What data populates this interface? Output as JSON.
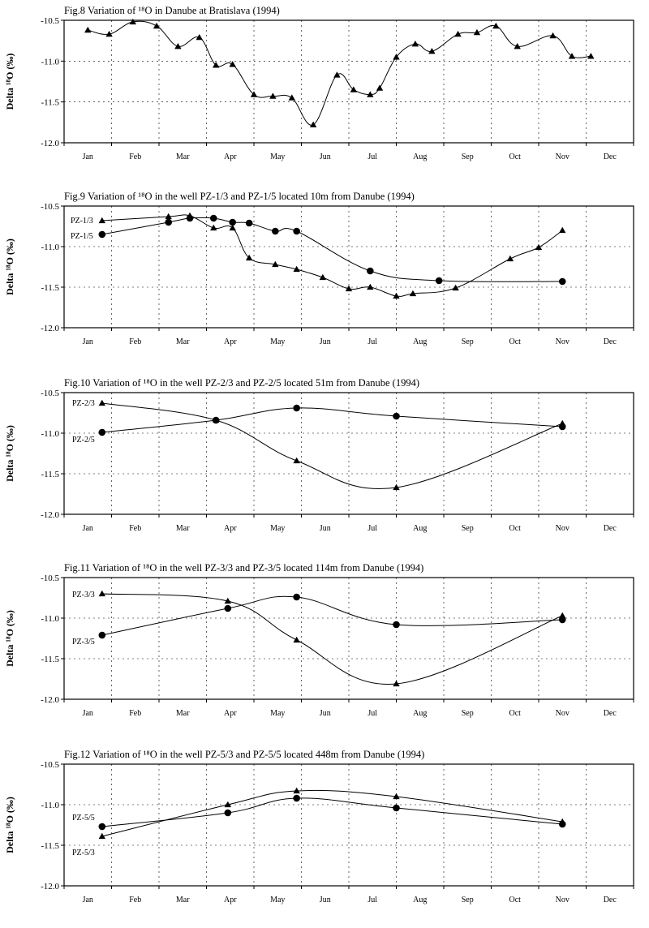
{
  "chart_data": [
    {
      "type": "line",
      "title": "Fig.8  Variation of ¹⁸O in Danube at Bratislava (1994)",
      "ylabel": "Delta ¹⁸O (‰)",
      "ylim": [
        -12.0,
        -10.5
      ],
      "yticks": [
        "-10.5",
        "-11.0",
        "-11.5",
        "-12.0"
      ],
      "categories": [
        "Jan",
        "Feb",
        "Mar",
        "Apr",
        "May",
        "Jun",
        "Jul",
        "Aug",
        "Sep",
        "Oct",
        "Nov",
        "Dec"
      ],
      "grid": true,
      "series": [
        {
          "marker": "triangle",
          "x": [
            0.0,
            0.45,
            0.95,
            1.45,
            1.9,
            2.35,
            2.7,
            3.05,
            3.5,
            3.9,
            4.3,
            4.75,
            5.25,
            5.6,
            5.95,
            6.15,
            6.5,
            6.9,
            7.25,
            7.8,
            8.2,
            8.6,
            9.05,
            9.8,
            10.2,
            10.6
          ],
          "y": [
            -10.62,
            -10.67,
            -10.52,
            -10.57,
            -10.82,
            -10.71,
            -11.05,
            -11.04,
            -11.41,
            -11.43,
            -11.45,
            -11.78,
            -11.17,
            -11.35,
            -11.41,
            -11.33,
            -10.95,
            -10.79,
            -10.88,
            -10.67,
            -10.65,
            -10.57,
            -10.82,
            -10.69,
            -10.94,
            -10.94
          ]
        }
      ]
    },
    {
      "type": "line",
      "title": "Fig.9  Variation of ¹⁸O in the well PZ-1/3 and PZ-1/5 located 10m from Danube (1994)",
      "ylabel": "Delta ¹⁸O (‰)",
      "ylim": [
        -12.0,
        -10.5
      ],
      "yticks": [
        "-10.5",
        "-11.0",
        "-11.5",
        "-12.0"
      ],
      "categories": [
        "Jan",
        "Feb",
        "Mar",
        "Apr",
        "May",
        "Jun",
        "Jul",
        "Aug",
        "Sep",
        "Oct",
        "Nov",
        "Dec"
      ],
      "grid": true,
      "series": [
        {
          "name": "PZ-1/3",
          "marker": "triangle",
          "x": [
            0.3,
            1.7,
            2.15,
            2.65,
            3.05,
            3.4,
            3.95,
            4.4,
            4.95,
            5.5,
            5.95,
            6.5,
            6.85,
            7.75,
            8.9,
            9.5,
            10.0
          ],
          "y": [
            -10.68,
            -10.63,
            -10.62,
            -10.77,
            -10.77,
            -11.14,
            -11.22,
            -11.28,
            -11.38,
            -11.52,
            -11.5,
            -11.61,
            -11.58,
            -11.51,
            -11.15,
            -11.01,
            -10.8
          ]
        },
        {
          "name": "PZ-1/5",
          "marker": "circle",
          "x": [
            0.3,
            1.7,
            2.15,
            2.65,
            3.05,
            3.4,
            3.95,
            4.4,
            5.95,
            7.4,
            10.0
          ],
          "y": [
            -10.85,
            -10.7,
            -10.65,
            -10.65,
            -10.7,
            -10.71,
            -10.81,
            -10.81,
            -11.3,
            -11.42,
            -11.43
          ]
        }
      ]
    },
    {
      "type": "line",
      "title": "Fig.10  Variation of ¹⁸O in the well PZ-2/3 and PZ-2/5 located 51m from Danube (1994)",
      "ylabel": "Delta ¹⁸O (‰)",
      "ylim": [
        -12.0,
        -10.5
      ],
      "yticks": [
        "-10.5",
        "-11.0",
        "-11.5",
        "-12.0"
      ],
      "categories": [
        "Jan",
        "Feb",
        "Mar",
        "Apr",
        "May",
        "Jun",
        "Jul",
        "Aug",
        "Sep",
        "Oct",
        "Nov",
        "Dec"
      ],
      "grid": true,
      "series": [
        {
          "name": "PZ-2/3",
          "marker": "triangle",
          "x": [
            0.3,
            2.7,
            4.4,
            6.5,
            10.0
          ],
          "y": [
            -10.63,
            -10.84,
            -11.34,
            -11.67,
            -10.88
          ]
        },
        {
          "name": "PZ-2/5",
          "marker": "circle",
          "x": [
            0.3,
            2.7,
            4.4,
            6.5,
            10.0
          ],
          "y": [
            -10.99,
            -10.84,
            -10.69,
            -10.79,
            -10.92
          ]
        }
      ]
    },
    {
      "type": "line",
      "title": "Fig.11  Variation of ¹⁸O in the well PZ-3/3 and PZ-3/5 located 114m from Danube (1994)",
      "ylabel": "Delta ¹⁸O (‰)",
      "ylim": [
        -12.0,
        -10.5
      ],
      "yticks": [
        "-10.5",
        "-11.0",
        "-11.5",
        "-12.0"
      ],
      "categories": [
        "Jan",
        "Feb",
        "Mar",
        "Apr",
        "May",
        "Jun",
        "Jul",
        "Aug",
        "Sep",
        "Oct",
        "Nov",
        "Dec"
      ],
      "grid": true,
      "series": [
        {
          "name": "PZ-3/3",
          "marker": "triangle",
          "x": [
            0.3,
            2.95,
            4.4,
            6.5,
            10.0
          ],
          "y": [
            -10.7,
            -10.79,
            -11.27,
            -11.81,
            -10.97
          ]
        },
        {
          "name": "PZ-3/5",
          "marker": "circle",
          "x": [
            0.3,
            2.95,
            4.4,
            6.5,
            10.0
          ],
          "y": [
            -11.21,
            -10.88,
            -10.74,
            -11.08,
            -11.02
          ]
        }
      ]
    },
    {
      "type": "line",
      "title": "Fig.12  Variation of ¹⁸O in the well PZ-5/3 and PZ-5/5 located 448m from Danube (1994)",
      "ylabel": "Delta ¹⁸O (‰)",
      "ylim": [
        -12.0,
        -10.5
      ],
      "yticks": [
        "-10.5",
        "-11.0",
        "-11.5",
        "-12.0"
      ],
      "categories": [
        "Jan",
        "Feb",
        "Mar",
        "Apr",
        "May",
        "Jun",
        "Jul",
        "Aug",
        "Sep",
        "Oct",
        "Nov",
        "Dec"
      ],
      "grid": true,
      "series": [
        {
          "name": "PZ-5/3",
          "marker": "triangle",
          "x": [
            0.3,
            2.95,
            4.4,
            6.5,
            10.0
          ],
          "y": [
            -11.39,
            -11.0,
            -10.83,
            -10.9,
            -11.21
          ]
        },
        {
          "name": "PZ-5/5",
          "marker": "circle",
          "x": [
            0.3,
            2.95,
            4.4,
            6.5,
            10.0
          ],
          "y": [
            -11.27,
            -11.1,
            -10.92,
            -11.04,
            -11.24
          ]
        }
      ]
    }
  ]
}
